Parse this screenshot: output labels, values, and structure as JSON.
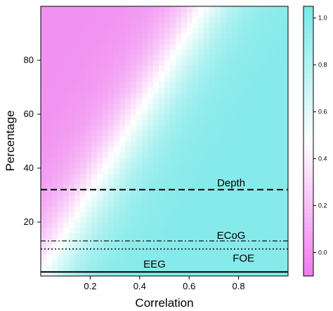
{
  "chart_data": {
    "type": "heatmap",
    "xlabel": "Correlation",
    "ylabel": "Percentage",
    "xlim": [
      0,
      1
    ],
    "ylim": [
      0,
      100
    ],
    "x_ticks": [
      0.2,
      0.4,
      0.6,
      0.8
    ],
    "x_tick_labels": [
      "0.2",
      "0.4",
      "0.6",
      "0.8"
    ],
    "y_ticks": [
      20,
      40,
      60,
      80
    ],
    "y_tick_labels": [
      "20",
      "40",
      "60",
      "80"
    ],
    "colorbar": {
      "range": [
        -0.1,
        1.05
      ],
      "ticks": [
        0.0,
        0.2,
        0.4,
        0.6,
        0.8,
        1.0
      ],
      "tick_labels": [
        "0.0",
        "0.2",
        "0.4",
        "0.6",
        "0.8",
        "1.0"
      ],
      "low_color": "#ee7aee",
      "mid_color": "#ffffff",
      "high_color": "#7ae8e8"
    },
    "reference_lines": [
      {
        "label": "Depth",
        "y": 32,
        "style": "dashed"
      },
      {
        "label": "ECoG",
        "y": 13,
        "style": "dashdot"
      },
      {
        "label": "FOE",
        "y": 10,
        "style": "dotted"
      },
      {
        "label": "EEG",
        "y": 1.5,
        "style": "solid"
      }
    ]
  }
}
